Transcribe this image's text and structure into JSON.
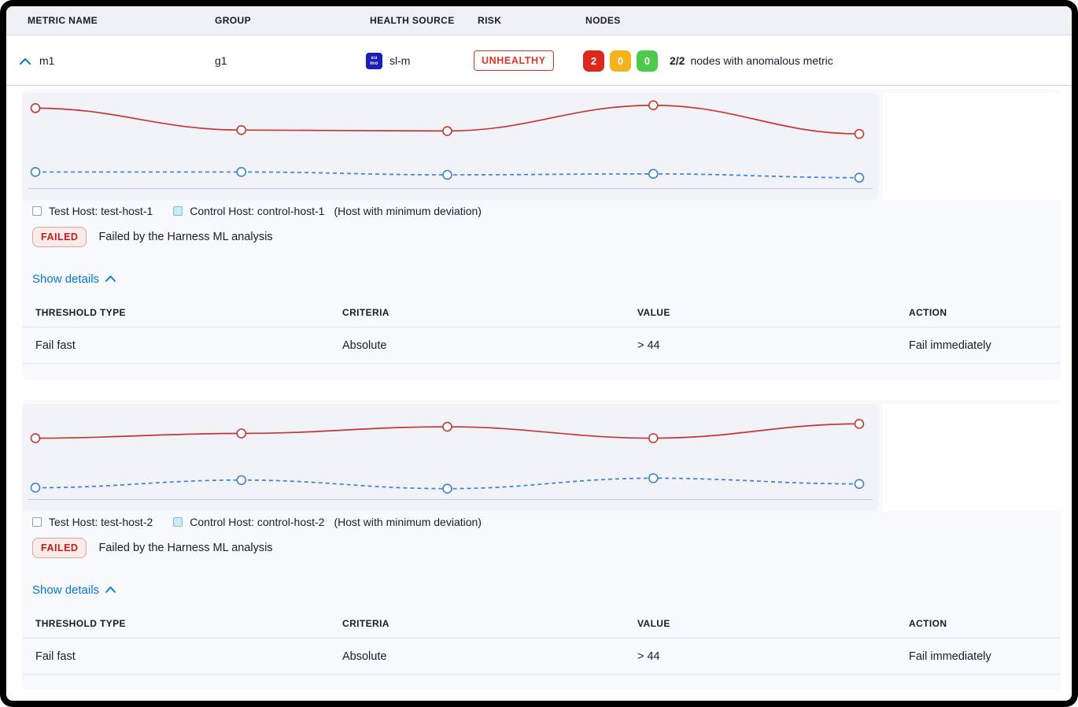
{
  "header": {
    "columns": [
      "METRIC NAME",
      "GROUP",
      "HEALTH SOURCE",
      "RISK",
      "NODES"
    ]
  },
  "row": {
    "metric_name": "m1",
    "group": "g1",
    "health_source_label": "sl-m",
    "health_source_icon_top": "su",
    "health_source_icon_bottom": "mo",
    "risk_label": "UNHEALTHY",
    "nodes": {
      "anomalous": "2",
      "warning": "0",
      "healthy": "0",
      "ratio": "2/2",
      "caption": "nodes with anomalous metric"
    }
  },
  "sections": [
    {
      "legend": {
        "test_label": "Test Host: test-host-1",
        "control_label": "Control Host: control-host-1",
        "note": "(Host with minimum deviation)"
      },
      "status": {
        "badge": "FAILED",
        "message": "Failed by the Harness ML analysis"
      },
      "details_label": "Show details",
      "table": {
        "columns": [
          "THRESHOLD TYPE",
          "CRITERIA",
          "VALUE",
          "ACTION"
        ],
        "rows": [
          {
            "threshold_type": "Fail fast",
            "criteria": "Absolute",
            "value": "> 44",
            "action": "Fail immediately"
          }
        ]
      }
    },
    {
      "legend": {
        "test_label": "Test Host: test-host-2",
        "control_label": "Control Host: control-host-2",
        "note": "(Host with minimum deviation)"
      },
      "status": {
        "badge": "FAILED",
        "message": "Failed by the Harness ML analysis"
      },
      "details_label": "Show details",
      "table": {
        "columns": [
          "THRESHOLD TYPE",
          "CRITERIA",
          "VALUE",
          "ACTION"
        ],
        "rows": [
          {
            "threshold_type": "Fail fast",
            "criteria": "Absolute",
            "value": "> 44",
            "action": "Fail immediately"
          }
        ]
      }
    }
  ],
  "chart_data": [
    {
      "type": "line",
      "x": [
        1,
        2,
        3,
        4,
        5
      ],
      "x_tick_labels": "none",
      "ylim": [
        0,
        100
      ],
      "grid": false,
      "legend_position": "below",
      "series": [
        {
          "name": "Test Host: test-host-1",
          "color": "#c23934",
          "line_style": "solid",
          "marker": "open-circle",
          "values": [
            84,
            61,
            60,
            87,
            57
          ]
        },
        {
          "name": "Control Host: control-host-1",
          "color": "#3b82d4",
          "line_style": "dashed",
          "marker": "open-circle",
          "values": [
            17,
            17,
            14,
            15,
            11
          ]
        }
      ]
    },
    {
      "type": "line",
      "x": [
        1,
        2,
        3,
        4,
        5
      ],
      "x_tick_labels": "none",
      "ylim": [
        0,
        100
      ],
      "grid": false,
      "legend_position": "below",
      "series": [
        {
          "name": "Test Host: test-host-2",
          "color": "#c23934",
          "line_style": "solid",
          "marker": "open-circle",
          "values": [
            64,
            69,
            76,
            64,
            79
          ]
        },
        {
          "name": "Control Host: control-host-2",
          "color": "#3b82d4",
          "line_style": "dashed",
          "marker": "open-circle",
          "values": [
            12,
            20,
            11,
            22,
            16
          ]
        }
      ]
    }
  ],
  "colors": {
    "accent_blue": "#0278d5",
    "risk_red": "#e43326",
    "node_red": "#da291e",
    "node_yellow": "#f5b31b",
    "node_green": "#4dc94b",
    "failed_text": "#bf2018",
    "test_line": "#c23934",
    "control_line": "#3b82d4",
    "axis_line": "#c7cadf"
  }
}
